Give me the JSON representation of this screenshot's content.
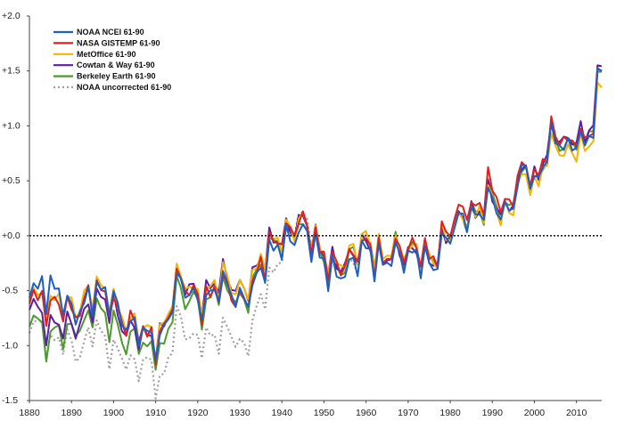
{
  "chart_data": {
    "type": "line",
    "title": "",
    "xlabel": "",
    "ylabel": "",
    "xlim": [
      1880,
      2016
    ],
    "ylim": [
      -1.5,
      2.0
    ],
    "x_ticks": [
      1880,
      1890,
      1900,
      1910,
      1920,
      1930,
      1940,
      1950,
      1960,
      1970,
      1980,
      1990,
      2000,
      2010
    ],
    "x_tick_labels": [
      "1880",
      "1890",
      "1900",
      "1910",
      "1920",
      "1930",
      "1940",
      "1950",
      "1960",
      "1970",
      "1980",
      "1990",
      "2000",
      "2010"
    ],
    "y_ticks": [
      -1.5,
      -1.0,
      -0.5,
      0.0,
      0.5,
      1.0,
      1.5,
      2.0
    ],
    "y_tick_labels": [
      "-1.5",
      "-1.0",
      "-0.5",
      "+0.0",
      "+0.5",
      "+1.0",
      "+1.5",
      "+2.0"
    ],
    "grid": false,
    "zero_line": {
      "value": 0.0,
      "style": "dotted",
      "color": "#222222"
    },
    "legend_position": "top-left",
    "base_series": {
      "x": [
        1880,
        1885,
        1890,
        1895,
        1900,
        1904,
        1908,
        1911,
        1915,
        1920,
        1925,
        1930,
        1935,
        1940,
        1944,
        1948,
        1952,
        1956,
        1960,
        1964,
        1968,
        1972,
        1976,
        1980,
        1983,
        1986,
        1990,
        1993,
        1996,
        1998,
        2000,
        2003,
        2005,
        2008,
        2010,
        2012,
        2014,
        2016
      ],
      "y": [
        -0.45,
        -0.62,
        -0.7,
        -0.55,
        -0.62,
        -0.85,
        -0.98,
        -0.95,
        -0.48,
        -0.6,
        -0.48,
        -0.55,
        -0.3,
        -0.02,
        0.1,
        -0.12,
        -0.26,
        -0.3,
        -0.06,
        -0.22,
        -0.18,
        -0.1,
        -0.3,
        0.08,
        0.22,
        0.12,
        0.4,
        0.2,
        0.38,
        0.62,
        0.45,
        0.8,
        0.85,
        0.72,
        0.92,
        0.85,
        1.02,
        1.48
      ]
    },
    "series": [
      {
        "name": "NOAA NCEI 61-90",
        "color": "#1f5fc4",
        "style": "solid",
        "offsets": [
          0.05,
          0.12,
          0.02,
          0.0,
          0.05,
          0.02,
          0.03,
          0.01,
          0.02,
          0.0,
          0.01,
          -0.03,
          -0.05,
          -0.02,
          -0.05,
          -0.03,
          -0.05,
          -0.06,
          -0.03,
          -0.03,
          -0.04,
          -0.02,
          -0.04,
          -0.02,
          0.0,
          -0.02,
          -0.03,
          0.0,
          -0.01,
          0.02,
          0.0,
          0.02,
          0.02,
          0.0,
          0.02,
          0.0,
          0.02,
          0.05
        ],
        "noise_seed": 1,
        "noise_amp": 0.07
      },
      {
        "name": "NASA GISTEMP 61-90",
        "color": "#e02020",
        "style": "solid",
        "offsets": [
          0.0,
          -0.05,
          0.02,
          0.02,
          0.0,
          0.05,
          0.02,
          0.02,
          0.05,
          0.02,
          0.0,
          -0.05,
          0.0,
          0.05,
          0.05,
          0.02,
          0.03,
          0.02,
          0.02,
          0.0,
          0.02,
          0.05,
          0.03,
          0.05,
          0.08,
          0.05,
          0.1,
          0.05,
          0.06,
          0.02,
          0.05,
          0.05,
          0.07,
          0.05,
          0.05,
          0.04,
          0.04,
          0.05
        ],
        "noise_seed": 2,
        "noise_amp": 0.08
      },
      {
        "name": "MetOffice 61-90",
        "color": "#f5b400",
        "style": "solid",
        "offsets": [
          0.02,
          -0.02,
          0.06,
          0.05,
          0.05,
          0.05,
          0.06,
          0.05,
          0.08,
          0.05,
          0.06,
          0.05,
          0.05,
          0.04,
          0.05,
          0.04,
          0.04,
          0.06,
          0.06,
          0.04,
          0.03,
          0.02,
          0.02,
          0.0,
          -0.02,
          0.0,
          -0.02,
          -0.02,
          -0.03,
          -0.06,
          -0.03,
          -0.02,
          -0.05,
          -0.05,
          -0.05,
          -0.05,
          -0.05,
          -0.1
        ],
        "noise_seed": 3,
        "noise_amp": 0.07
      },
      {
        "name": "Cowtan & Way 61-90",
        "color": "#5b1fa3",
        "style": "solid",
        "offsets": [
          -0.05,
          -0.25,
          -0.12,
          -0.08,
          -0.02,
          -0.02,
          0.0,
          0.05,
          0.05,
          0.06,
          0.08,
          0.06,
          0.05,
          0.05,
          0.05,
          0.04,
          0.04,
          0.02,
          0.02,
          0.0,
          0.0,
          0.0,
          0.0,
          0.0,
          0.0,
          0.0,
          0.0,
          0.02,
          0.02,
          0.02,
          0.04,
          0.04,
          0.06,
          0.06,
          0.06,
          0.07,
          0.08,
          0.1
        ],
        "noise_seed": 4,
        "noise_amp": 0.08
      },
      {
        "name": "Berkeley Earth 61-90",
        "color": "#4e9a2e",
        "style": "solid",
        "offsets": [
          -0.2,
          -0.35,
          -0.15,
          -0.15,
          -0.18,
          -0.1,
          -0.07,
          -0.1,
          -0.06,
          -0.04,
          -0.02,
          -0.05,
          -0.02,
          0.02,
          0.0,
          0.0,
          0.0,
          0.02,
          0.04,
          0.02,
          0.0,
          0.0,
          0.0,
          0.0,
          0.0,
          0.0,
          0.0,
          0.02,
          0.02,
          0.0,
          0.02,
          0.02,
          0.02,
          0.02,
          0.02,
          0.03,
          0.03,
          0.05
        ],
        "noise_seed": 5,
        "noise_amp": 0.08
      },
      {
        "name": "NOAA uncorrected 61-90",
        "color": "#a0a0a0",
        "style": "dotted",
        "offsets": [
          -0.25,
          -0.35,
          -0.32,
          -0.35,
          -0.4,
          -0.3,
          -0.25,
          -0.35,
          -0.35,
          -0.35,
          -0.4,
          -0.45,
          -0.35,
          -0.1,
          0.15,
          0.0,
          0.0,
          -0.05,
          0.02,
          0.0,
          0.0,
          0.0,
          0.0,
          0.0,
          0.0,
          0.0,
          0.0,
          0.0,
          0.0,
          0.0,
          0.0,
          0.0,
          0.0,
          0.0,
          0.0,
          0.0,
          0.0,
          0.0
        ],
        "x_end": 1963,
        "noise_seed": 6,
        "noise_amp": 0.1
      }
    ]
  }
}
